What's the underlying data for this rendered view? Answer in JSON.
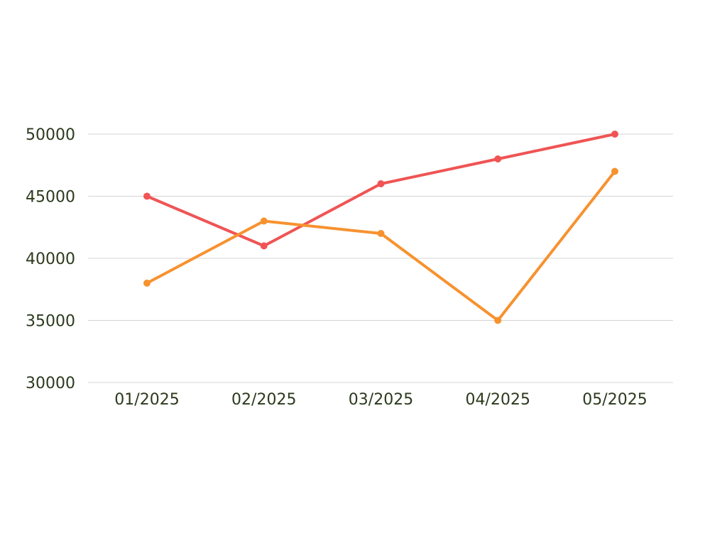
{
  "chart_data": {
    "type": "line",
    "title": "",
    "xlabel": "",
    "ylabel": "",
    "categories": [
      "01/2025",
      "02/2025",
      "03/2025",
      "04/2025",
      "05/2025"
    ],
    "y_ticks": [
      30000,
      35000,
      40000,
      45000,
      50000
    ],
    "ylim": [
      30000,
      50000
    ],
    "grid": true,
    "legend": "none",
    "series": [
      {
        "color": "#f05454",
        "values": [
          45000,
          41000,
          46000,
          48000,
          50000
        ]
      },
      {
        "color": "#f7922f",
        "values": [
          38000,
          43000,
          42000,
          35000,
          47000
        ]
      }
    ]
  }
}
